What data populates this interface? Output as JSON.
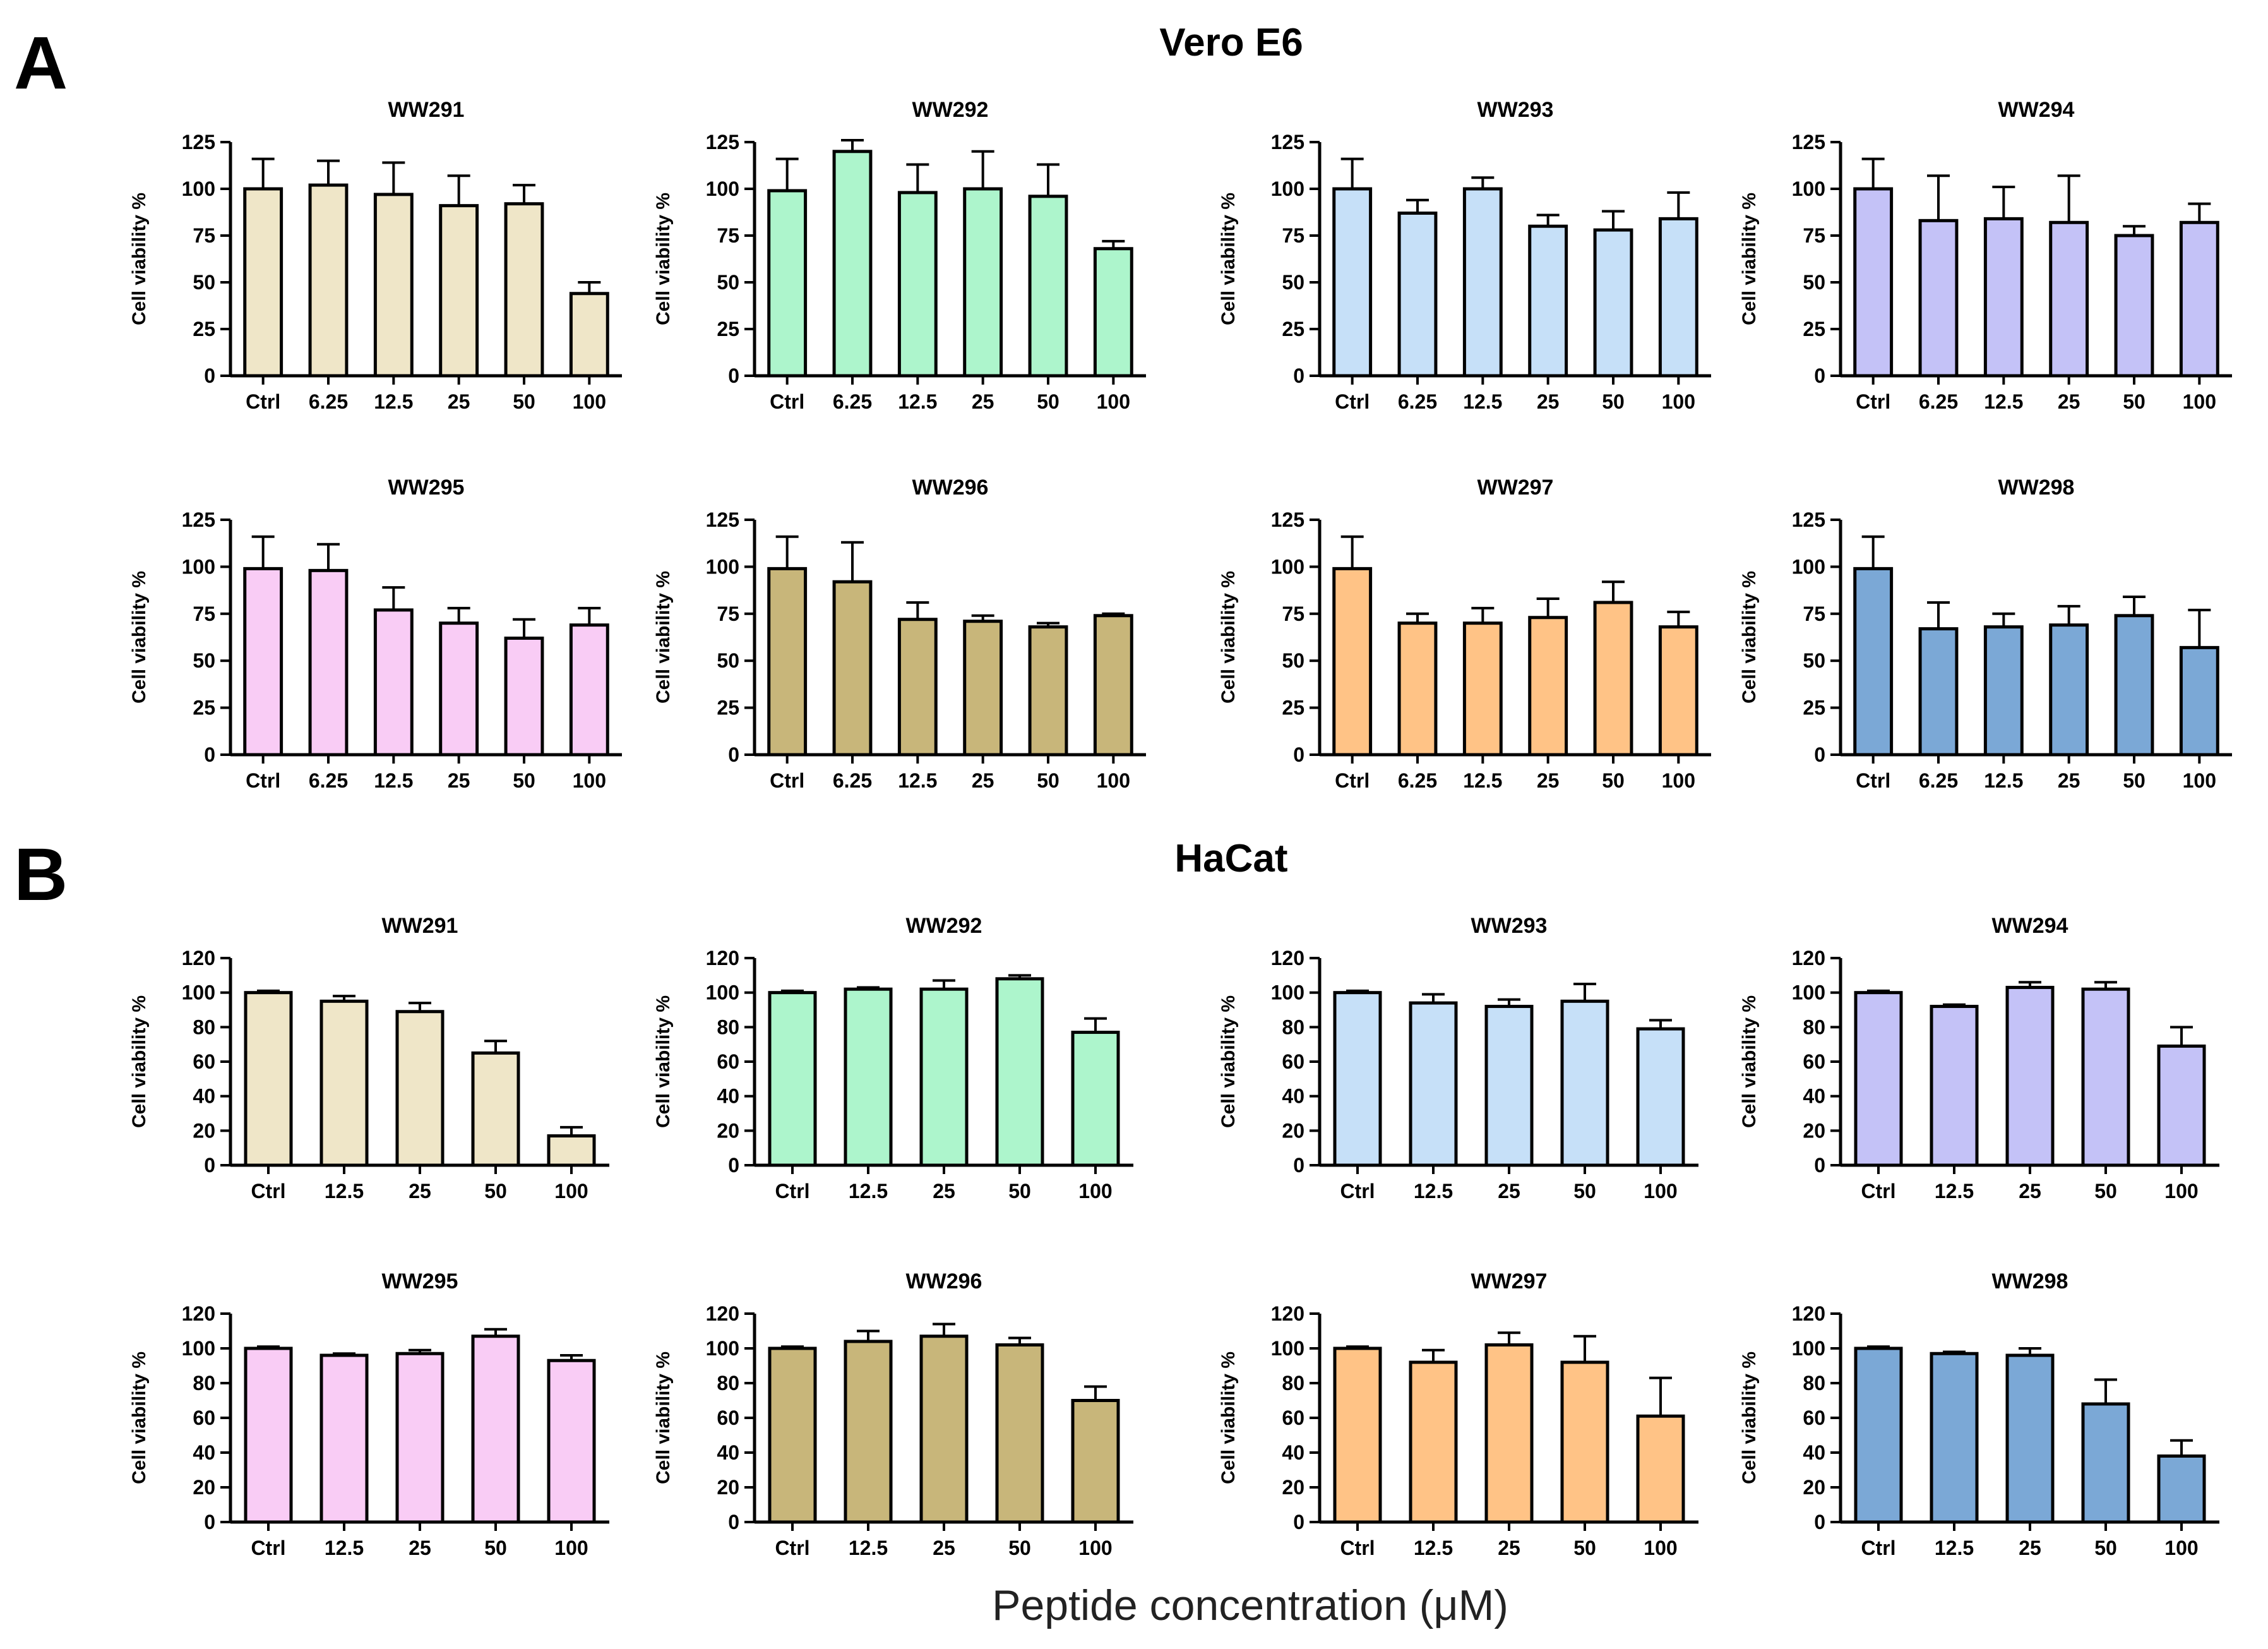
{
  "figure": {
    "panel_a_letter": "A",
    "panel_b_letter": "B",
    "panel_a_title": "Vero E6",
    "panel_b_title": "HaCat",
    "shared_xlabel": "Peptide concentration  (μM)"
  },
  "colors": {
    "WW291": "#efe6c8",
    "WW292": "#adf5cc",
    "WW293": "#c6e0f8",
    "WW294": "#c4c2f7",
    "WW295": "#f9ccf5",
    "WW296": "#c8b67a",
    "WW297": "#ffc386",
    "WW298": "#7ba8d6"
  },
  "chart_data": [
    {
      "panel": "A",
      "cell_line": "Vero E6",
      "type": "bar",
      "title": "WW291",
      "ylabel": "Cell viability %",
      "xlabel": "",
      "ylim": [
        0,
        125
      ],
      "yticks": [
        0,
        25,
        50,
        75,
        100,
        125
      ],
      "categories": [
        "Ctrl",
        "6.25",
        "12.5",
        "25",
        "50",
        "100"
      ],
      "values": [
        100,
        102,
        97,
        91,
        92,
        44
      ],
      "errors": [
        16,
        13,
        17,
        16,
        10,
        6
      ]
    },
    {
      "panel": "A",
      "cell_line": "Vero E6",
      "type": "bar",
      "title": "WW292",
      "ylabel": "Cell viability %",
      "xlabel": "",
      "ylim": [
        0,
        125
      ],
      "yticks": [
        0,
        25,
        50,
        75,
        100,
        125
      ],
      "categories": [
        "Ctrl",
        "6.25",
        "12.5",
        "25",
        "50",
        "100"
      ],
      "values": [
        99,
        120,
        98,
        100,
        96,
        68
      ],
      "errors": [
        17,
        6,
        15,
        20,
        17,
        4
      ]
    },
    {
      "panel": "A",
      "cell_line": "Vero E6",
      "type": "bar",
      "title": "WW293",
      "ylabel": "Cell viability %",
      "xlabel": "",
      "ylim": [
        0,
        125
      ],
      "yticks": [
        0,
        25,
        50,
        75,
        100,
        125
      ],
      "categories": [
        "Ctrl",
        "6.25",
        "12.5",
        "25",
        "50",
        "100"
      ],
      "values": [
        100,
        87,
        100,
        80,
        78,
        84
      ],
      "errors": [
        16,
        7,
        6,
        6,
        10,
        14
      ]
    },
    {
      "panel": "A",
      "cell_line": "Vero E6",
      "type": "bar",
      "title": "WW294",
      "ylabel": "Cell viability %",
      "xlabel": "",
      "ylim": [
        0,
        125
      ],
      "yticks": [
        0,
        25,
        50,
        75,
        100,
        125
      ],
      "categories": [
        "Ctrl",
        "6.25",
        "12.5",
        "25",
        "50",
        "100"
      ],
      "values": [
        100,
        83,
        84,
        82,
        75,
        82
      ],
      "errors": [
        16,
        24,
        17,
        25,
        5,
        10
      ]
    },
    {
      "panel": "A",
      "cell_line": "Vero E6",
      "type": "bar",
      "title": "WW295",
      "ylabel": "Cell viability %",
      "xlabel": "",
      "ylim": [
        0,
        125
      ],
      "yticks": [
        0,
        25,
        50,
        75,
        100,
        125
      ],
      "categories": [
        "Ctrl",
        "6.25",
        "12.5",
        "25",
        "50",
        "100"
      ],
      "values": [
        99,
        98,
        77,
        70,
        62,
        69
      ],
      "errors": [
        17,
        14,
        12,
        8,
        10,
        9
      ]
    },
    {
      "panel": "A",
      "cell_line": "Vero E6",
      "type": "bar",
      "title": "WW296",
      "ylabel": "Cell viability %",
      "xlabel": "",
      "ylim": [
        0,
        125
      ],
      "yticks": [
        0,
        25,
        50,
        75,
        100,
        125
      ],
      "categories": [
        "Ctrl",
        "6.25",
        "12.5",
        "25",
        "50",
        "100"
      ],
      "values": [
        99,
        92,
        72,
        71,
        68,
        74
      ],
      "errors": [
        17,
        21,
        9,
        3,
        2,
        1
      ]
    },
    {
      "panel": "A",
      "cell_line": "Vero E6",
      "type": "bar",
      "title": "WW297",
      "ylabel": "Cell viability %",
      "xlabel": "",
      "ylim": [
        0,
        125
      ],
      "yticks": [
        0,
        25,
        50,
        75,
        100,
        125
      ],
      "categories": [
        "Ctrl",
        "6.25",
        "12.5",
        "25",
        "50",
        "100"
      ],
      "values": [
        99,
        70,
        70,
        73,
        81,
        68
      ],
      "errors": [
        17,
        5,
        8,
        10,
        11,
        8
      ]
    },
    {
      "panel": "A",
      "cell_line": "Vero E6",
      "type": "bar",
      "title": "WW298",
      "ylabel": "Cell viability %",
      "xlabel": "",
      "ylim": [
        0,
        125
      ],
      "yticks": [
        0,
        25,
        50,
        75,
        100,
        125
      ],
      "categories": [
        "Ctrl",
        "6.25",
        "12.5",
        "25",
        "50",
        "100"
      ],
      "values": [
        99,
        67,
        68,
        69,
        74,
        57
      ],
      "errors": [
        17,
        14,
        7,
        10,
        10,
        20
      ]
    },
    {
      "panel": "B",
      "cell_line": "HaCat",
      "type": "bar",
      "title": "WW291",
      "ylabel": "Cell viability %",
      "xlabel": "",
      "ylim": [
        0,
        120
      ],
      "yticks": [
        0,
        20,
        40,
        60,
        80,
        100,
        120
      ],
      "categories": [
        "Ctrl",
        "12.5",
        "25",
        "50",
        "100"
      ],
      "values": [
        100,
        95,
        89,
        65,
        17
      ],
      "errors": [
        1,
        3,
        5,
        7,
        5
      ]
    },
    {
      "panel": "B",
      "cell_line": "HaCat",
      "type": "bar",
      "title": "WW292",
      "ylabel": "Cell viability %",
      "xlabel": "",
      "ylim": [
        0,
        120
      ],
      "yticks": [
        0,
        20,
        40,
        60,
        80,
        100,
        120
      ],
      "categories": [
        "Ctrl",
        "12.5",
        "25",
        "50",
        "100"
      ],
      "values": [
        100,
        102,
        102,
        108,
        77
      ],
      "errors": [
        1,
        1,
        5,
        2,
        8
      ]
    },
    {
      "panel": "B",
      "cell_line": "HaCat",
      "type": "bar",
      "title": "WW293",
      "ylabel": "Cell viability %",
      "xlabel": "",
      "ylim": [
        0,
        120
      ],
      "yticks": [
        0,
        20,
        40,
        60,
        80,
        100,
        120
      ],
      "categories": [
        "Ctrl",
        "12.5",
        "25",
        "50",
        "100"
      ],
      "values": [
        100,
        94,
        92,
        95,
        79
      ],
      "errors": [
        1,
        5,
        4,
        10,
        5
      ]
    },
    {
      "panel": "B",
      "cell_line": "HaCat",
      "type": "bar",
      "title": "WW294",
      "ylabel": "Cell viability %",
      "xlabel": "",
      "ylim": [
        0,
        120
      ],
      "yticks": [
        0,
        20,
        40,
        60,
        80,
        100,
        120
      ],
      "categories": [
        "Ctrl",
        "12.5",
        "25",
        "50",
        "100"
      ],
      "values": [
        100,
        92,
        103,
        102,
        69
      ],
      "errors": [
        1,
        1,
        3,
        4,
        11
      ]
    },
    {
      "panel": "B",
      "cell_line": "HaCat",
      "type": "bar",
      "title": "WW295",
      "ylabel": "Cell viability %",
      "xlabel": "",
      "ylim": [
        0,
        120
      ],
      "yticks": [
        0,
        20,
        40,
        60,
        80,
        100,
        120
      ],
      "categories": [
        "Ctrl",
        "12.5",
        "25",
        "50",
        "100"
      ],
      "values": [
        100,
        96,
        97,
        107,
        93
      ],
      "errors": [
        1,
        1,
        2,
        4,
        3
      ]
    },
    {
      "panel": "B",
      "cell_line": "HaCat",
      "type": "bar",
      "title": "WW296",
      "ylabel": "Cell viability %",
      "xlabel": "",
      "ylim": [
        0,
        120
      ],
      "yticks": [
        0,
        20,
        40,
        60,
        80,
        100,
        120
      ],
      "categories": [
        "Ctrl",
        "12.5",
        "25",
        "50",
        "100"
      ],
      "values": [
        100,
        104,
        107,
        102,
        70
      ],
      "errors": [
        1,
        6,
        7,
        4,
        8
      ]
    },
    {
      "panel": "B",
      "cell_line": "HaCat",
      "type": "bar",
      "title": "WW297",
      "ylabel": "Cell viability %",
      "xlabel": "",
      "ylim": [
        0,
        120
      ],
      "yticks": [
        0,
        20,
        40,
        60,
        80,
        100,
        120
      ],
      "categories": [
        "Ctrl",
        "12.5",
        "25",
        "50",
        "100"
      ],
      "values": [
        100,
        92,
        102,
        92,
        61
      ],
      "errors": [
        1,
        7,
        7,
        15,
        22
      ]
    },
    {
      "panel": "B",
      "cell_line": "HaCat",
      "type": "bar",
      "title": "WW298",
      "ylabel": "Cell viability %",
      "xlabel": "",
      "ylim": [
        0,
        120
      ],
      "yticks": [
        0,
        20,
        40,
        60,
        80,
        100,
        120
      ],
      "categories": [
        "Ctrl",
        "12.5",
        "25",
        "50",
        "100"
      ],
      "values": [
        100,
        97,
        96,
        68,
        38
      ],
      "errors": [
        1,
        1,
        4,
        14,
        9
      ]
    }
  ]
}
